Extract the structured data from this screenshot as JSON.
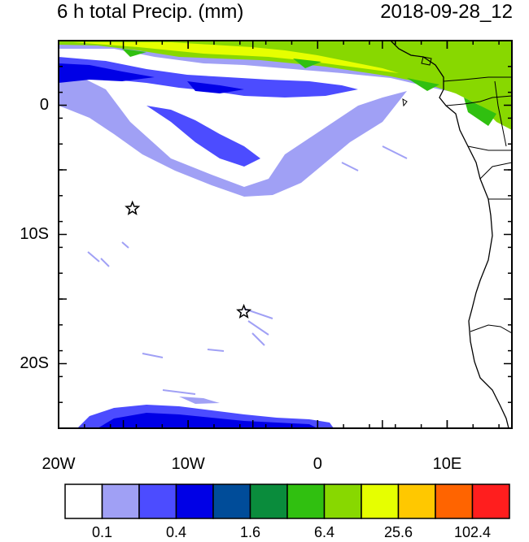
{
  "title": {
    "left": "6 h total Precip. (mm)",
    "right": "2018-09-28_12"
  },
  "axes": {
    "x_ticks": [
      {
        "lon": -20,
        "label": "20W"
      },
      {
        "lon": -10,
        "label": "10W"
      },
      {
        "lon": 0,
        "label": "0"
      },
      {
        "lon": 10,
        "label": "10E"
      }
    ],
    "y_ticks": [
      {
        "lat": 0,
        "label": "0"
      },
      {
        "lat": -10,
        "label": "10S"
      },
      {
        "lat": -20,
        "label": "20S"
      }
    ],
    "lon_range": [
      -20,
      15
    ],
    "lat_range": [
      -25,
      5
    ]
  },
  "colorbar": {
    "colors": [
      "#ffffff",
      "#a0a0f5",
      "#4c4cff",
      "#0000e6",
      "#004c99",
      "#0a8c3c",
      "#30c010",
      "#88d800",
      "#e6ff00",
      "#ffc800",
      "#ff6400",
      "#ff1e1e"
    ],
    "labels": [
      "0.1",
      "0.4",
      "1.6",
      "6.4",
      "25.6",
      "102.4"
    ]
  },
  "markers": [
    {
      "name": "star",
      "lon": -14.3,
      "lat": -8.0
    },
    {
      "name": "star",
      "lon": -5.7,
      "lat": -16.0
    }
  ]
}
